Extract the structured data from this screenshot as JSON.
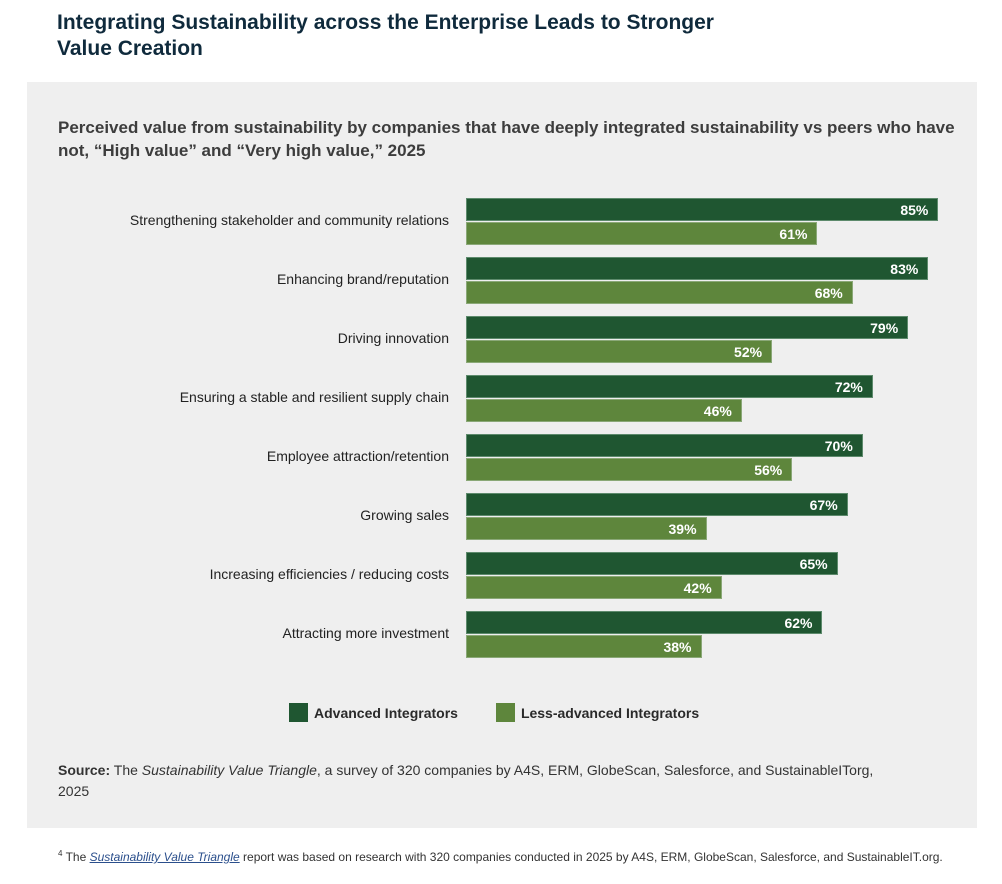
{
  "title": "Integrating Sustainability across the Enterprise Leads to Stronger Value Creation",
  "colors": {
    "advanced": "#1f5631",
    "less_advanced": "#5e863c",
    "panel": "#efefef"
  },
  "chart_data": {
    "type": "bar",
    "orientation": "horizontal",
    "title": "Perceived value from sustainability by companies that have deeply integrated sustainability vs peers who have not, “High value” and “Very high value,” 2025",
    "categories": [
      "Strengthening stakeholder and community relations",
      "Enhancing brand/reputation",
      "Driving innovation",
      "Ensuring a stable and resilient supply chain",
      "Employee attraction/retention",
      "Growing sales",
      "Increasing efficiencies / reducing costs",
      "Attracting more investment"
    ],
    "series": [
      {
        "name": "Advanced Integrators",
        "values": [
          85,
          83,
          79,
          72,
          70,
          67,
          65,
          62
        ]
      },
      {
        "name": "Less-advanced Integrators",
        "values": [
          61,
          68,
          52,
          46,
          56,
          39,
          42,
          38
        ]
      }
    ],
    "unit": "%",
    "legend": "bottom"
  },
  "source": {
    "label": "Source:",
    "pre": " The ",
    "italic": "Sustainability Value Triangle",
    "post": ", a survey of 320 companies by A4S, ERM, GlobeScan, Salesforce, and SustainableITorg, 2025"
  },
  "footnote": {
    "num": "4",
    "pre": " The ",
    "link": "Sustainability Value Triangle",
    "post": " report was based on research with 320 companies conducted in 2025 by A4S, ERM, GlobeScan, Salesforce, and SustainableIT.org."
  }
}
